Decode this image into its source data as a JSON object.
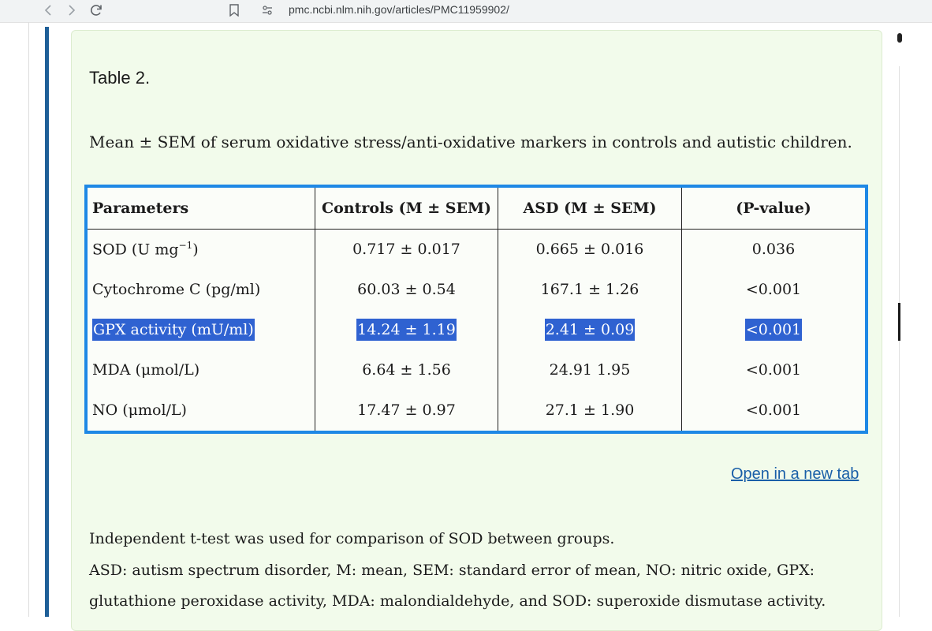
{
  "browser": {
    "back_icon": "chevron-left",
    "forward_icon": "chevron-right",
    "url": "pmc.ncbi.nlm.nih.gov/articles/PMC11959902/"
  },
  "table": {
    "title": "Table 2.",
    "caption": "Mean ± SEM of serum oxidative stress/anti-oxidative markers in controls and autistic children.",
    "headers": [
      "Parameters",
      "Controls (M ± SEM)",
      "ASD (M ± SEM)",
      "(P-value)"
    ],
    "rows": [
      {
        "param": "SOD (U mg",
        "param_sup": "−1",
        "param_suffix": ")",
        "controls": "0.717 ± 0.017",
        "asd": "0.665 ± 0.016",
        "p": "0.036"
      },
      {
        "param": "Cytochrome C (pg/ml)",
        "controls": "60.03 ± 0.54",
        "asd": "167.1 ± 1.26",
        "p": "<0.001"
      },
      {
        "param": "GPX activity (mU/ml)",
        "controls": "14.24 ± 1.19",
        "asd": "2.41 ± 0.09",
        "p": "<0.001",
        "selected": true
      },
      {
        "param": "MDA (μmol/L)",
        "controls": "6.64 ± 1.56",
        "asd": "24.91 1.95",
        "p": "<0.001"
      },
      {
        "param": "NO (μmol/L)",
        "controls": "17.47 ± 0.97",
        "asd": "27.1 ± 1.90",
        "p": "<0.001"
      }
    ]
  },
  "open_link": "Open in a new tab",
  "footnotes": [
    "Independent t-test was used for comparison of SOD between groups.",
    "ASD: autism spectrum disorder, M: mean, SEM: standard error of mean, NO: nitric oxide, GPX:",
    "glutathione peroxidase activity, MDA: malondialdehyde, and SOD: superoxide dismutase activity."
  ],
  "colors": {
    "panel_bg": "#f2fbeb",
    "table_focus_border": "#1e88e5",
    "selection": "#2f62d1",
    "link": "#1a5fa8",
    "left_rule": "#1f5f98"
  }
}
